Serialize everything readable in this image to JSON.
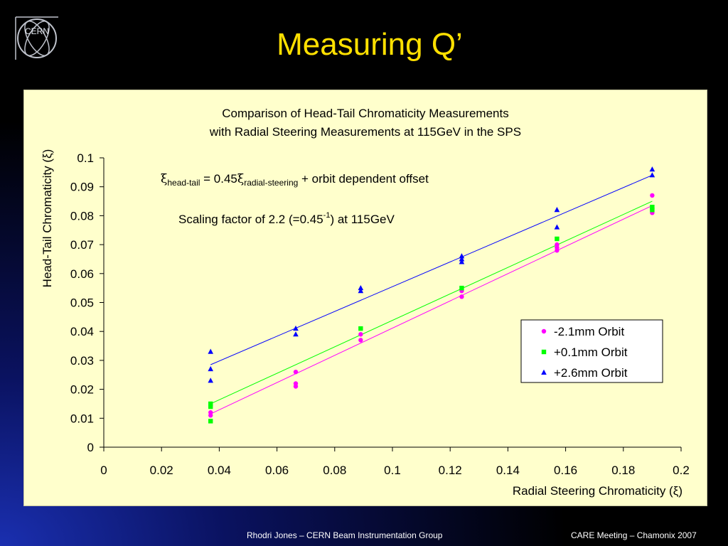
{
  "slide": {
    "title": "Measuring Q’",
    "logo_text": "CERN",
    "footer_left": "Rhodri Jones – CERN Beam Instrumentation Group",
    "footer_right": "CARE Meeting – Chamonix 2007"
  },
  "colors": {
    "title": "#ffe000",
    "panel": "#ffffcc"
  },
  "annotations": {
    "formula": {
      "xi": "ξ",
      "sub1": "head-tail",
      "mid": " = 0.45",
      "sub2": "radial-steering",
      "tail": " + orbit dependent offset"
    },
    "scaling": {
      "pre": "Scaling factor of 2.2 (=0.45",
      "sup": "-1",
      "post": ") at 115GeV"
    }
  },
  "chart_data": {
    "type": "scatter",
    "title": "Comparison of Head-Tail Chromaticity Measurements",
    "subtitle": "with Radial Steering Measurements at 115GeV in the SPS",
    "xlabel": "Radial Steering Chromaticity (ξ)",
    "ylabel": "Head-Tail Chromaticity (ξ)",
    "xlim": [
      0,
      0.2
    ],
    "ylim": [
      0,
      0.1
    ],
    "xticks": [
      "0",
      "0.02",
      "0.04",
      "0.06",
      "0.08",
      "0.1",
      "0.12",
      "0.14",
      "0.16",
      "0.18",
      "0.2"
    ],
    "yticks": [
      "0",
      "0.01",
      "0.02",
      "0.03",
      "0.04",
      "0.05",
      "0.06",
      "0.07",
      "0.08",
      "0.09",
      "0.1"
    ],
    "legend_position": "right",
    "series": [
      {
        "name": "-2.1mm Orbit",
        "color": "#ff00ff",
        "marker": "circle",
        "points": [
          [
            0.037,
            0.011
          ],
          [
            0.037,
            0.012
          ],
          [
            0.0665,
            0.026
          ],
          [
            0.0665,
            0.022
          ],
          [
            0.0665,
            0.021
          ],
          [
            0.089,
            0.039
          ],
          [
            0.089,
            0.037
          ],
          [
            0.124,
            0.052
          ],
          [
            0.124,
            0.054
          ],
          [
            0.157,
            0.07
          ],
          [
            0.157,
            0.069
          ],
          [
            0.157,
            0.068
          ],
          [
            0.19,
            0.087
          ],
          [
            0.19,
            0.082
          ],
          [
            0.19,
            0.081
          ]
        ],
        "fit": [
          [
            0.037,
            0.0115
          ],
          [
            0.19,
            0.0835
          ]
        ]
      },
      {
        "name": "+0.1mm Orbit",
        "color": "#00ff00",
        "marker": "square",
        "points": [
          [
            0.037,
            0.015
          ],
          [
            0.037,
            0.014
          ],
          [
            0.037,
            0.009
          ],
          [
            0.089,
            0.041
          ],
          [
            0.124,
            0.055
          ],
          [
            0.157,
            0.072
          ],
          [
            0.19,
            0.083
          ],
          [
            0.19,
            0.082
          ]
        ],
        "fit": [
          [
            0.037,
            0.015
          ],
          [
            0.19,
            0.085
          ]
        ]
      },
      {
        "name": "+2.6mm Orbit",
        "color": "#0000ff",
        "marker": "triangle",
        "points": [
          [
            0.037,
            0.033
          ],
          [
            0.037,
            0.027
          ],
          [
            0.037,
            0.023
          ],
          [
            0.0665,
            0.041
          ],
          [
            0.0665,
            0.039
          ],
          [
            0.089,
            0.055
          ],
          [
            0.089,
            0.054
          ],
          [
            0.124,
            0.066
          ],
          [
            0.124,
            0.065
          ],
          [
            0.124,
            0.064
          ],
          [
            0.157,
            0.082
          ],
          [
            0.157,
            0.076
          ],
          [
            0.19,
            0.096
          ],
          [
            0.19,
            0.094
          ]
        ],
        "fit": [
          [
            0.037,
            0.0285
          ],
          [
            0.19,
            0.094
          ]
        ]
      }
    ]
  }
}
